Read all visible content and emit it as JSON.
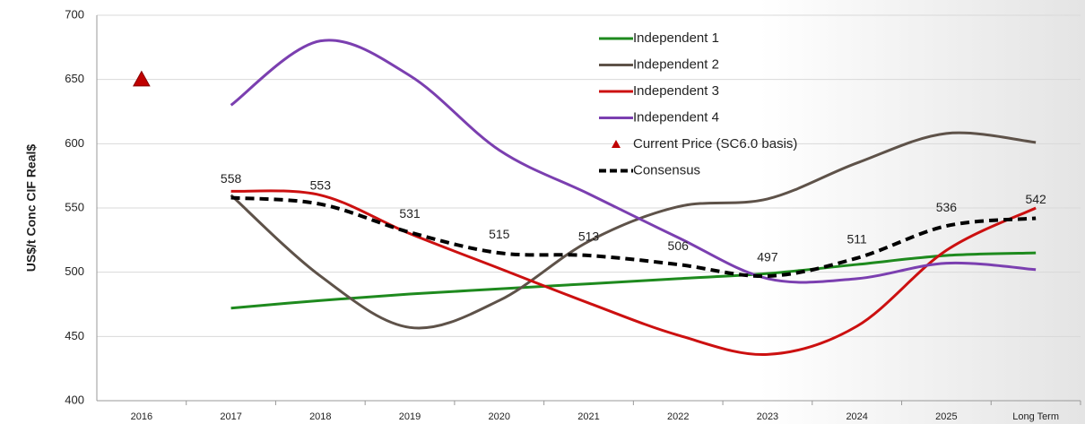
{
  "chart_data": {
    "type": "line",
    "y_label": "US$/t Conc CIF  Real$",
    "categories": [
      "2016",
      "2017",
      "2018",
      "2019",
      "2020",
      "2021",
      "2022",
      "2023",
      "2024",
      "2025",
      "Long Term"
    ],
    "series": [
      {
        "name": "Independent 1",
        "color": "#1e8a1e",
        "values": [
          null,
          472,
          478,
          483,
          487,
          491,
          495,
          499,
          506,
          513,
          515
        ]
      },
      {
        "name": "Independent 2",
        "color": "#5e5249",
        "values": [
          null,
          560,
          497,
          457,
          478,
          524,
          551,
          557,
          585,
          608,
          601
        ]
      },
      {
        "name": "Independent 3",
        "color": "#cc1010",
        "values": [
          null,
          563,
          560,
          530,
          503,
          476,
          451,
          436,
          458,
          517,
          550
        ]
      },
      {
        "name": "Independent 4",
        "color": "#7b3fb0",
        "values": [
          null,
          630,
          680,
          653,
          595,
          561,
          527,
          495,
          495,
          507,
          502
        ]
      },
      {
        "name": "Current Price (SC6.0 basis)",
        "color": "#c00000",
        "marker": "triangle",
        "values": [
          650,
          null,
          null,
          null,
          null,
          null,
          null,
          null,
          null,
          null,
          null
        ]
      },
      {
        "name": "Consensus",
        "color": "#000000",
        "dashed": true,
        "data_labels": true,
        "values": [
          null,
          558,
          553,
          531,
          515,
          513,
          506,
          497,
          511,
          536,
          542
        ]
      }
    ],
    "ylim": [
      400,
      700
    ],
    "yticks": [
      400,
      450,
      500,
      550,
      600,
      650,
      700
    ],
    "grid": true,
    "legend": "top"
  }
}
